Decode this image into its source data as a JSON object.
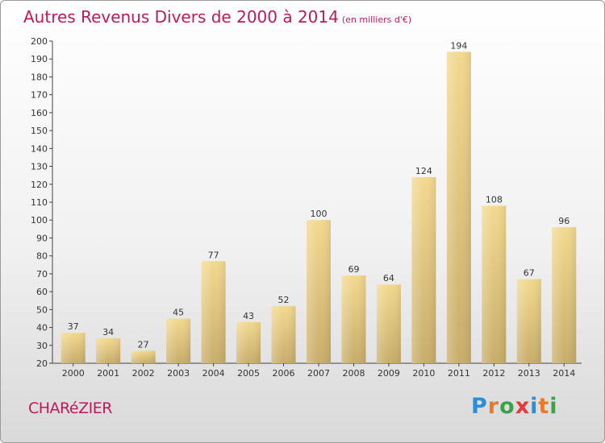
{
  "title": "Autres Revenus Divers de 2000 à 2014",
  "subtitle": "(en milliers d'€)",
  "place": "CHARéZIER",
  "logo": {
    "letters": [
      "P",
      "r",
      "o",
      "x",
      "i",
      "t",
      "i"
    ],
    "colors": [
      "#2a8fd6",
      "#e8792b",
      "#3aa34a",
      "#e23b3b",
      "#2a8fd6",
      "#e8792b",
      "#3aa34a"
    ]
  },
  "colors": {
    "bar_top": "#f3d98f",
    "bar_bottom": "#c8ad6a",
    "title": "#c2185b"
  },
  "chart_data": {
    "type": "bar",
    "title": "Autres Revenus Divers de 2000 à 2014",
    "subtitle": "(en milliers d'€)",
    "categories": [
      "2000",
      "2001",
      "2002",
      "2003",
      "2004",
      "2005",
      "2006",
      "2007",
      "2008",
      "2009",
      "2010",
      "2011",
      "2012",
      "2013",
      "2014"
    ],
    "values": [
      37,
      34,
      27,
      45,
      77,
      43,
      52,
      100,
      69,
      64,
      124,
      194,
      108,
      67,
      96
    ],
    "ylim": [
      20,
      200
    ],
    "yticks": [
      20,
      30,
      40,
      50,
      60,
      70,
      80,
      90,
      100,
      110,
      120,
      130,
      140,
      150,
      160,
      170,
      180,
      190,
      200
    ],
    "grid": false,
    "data_labels": true
  }
}
